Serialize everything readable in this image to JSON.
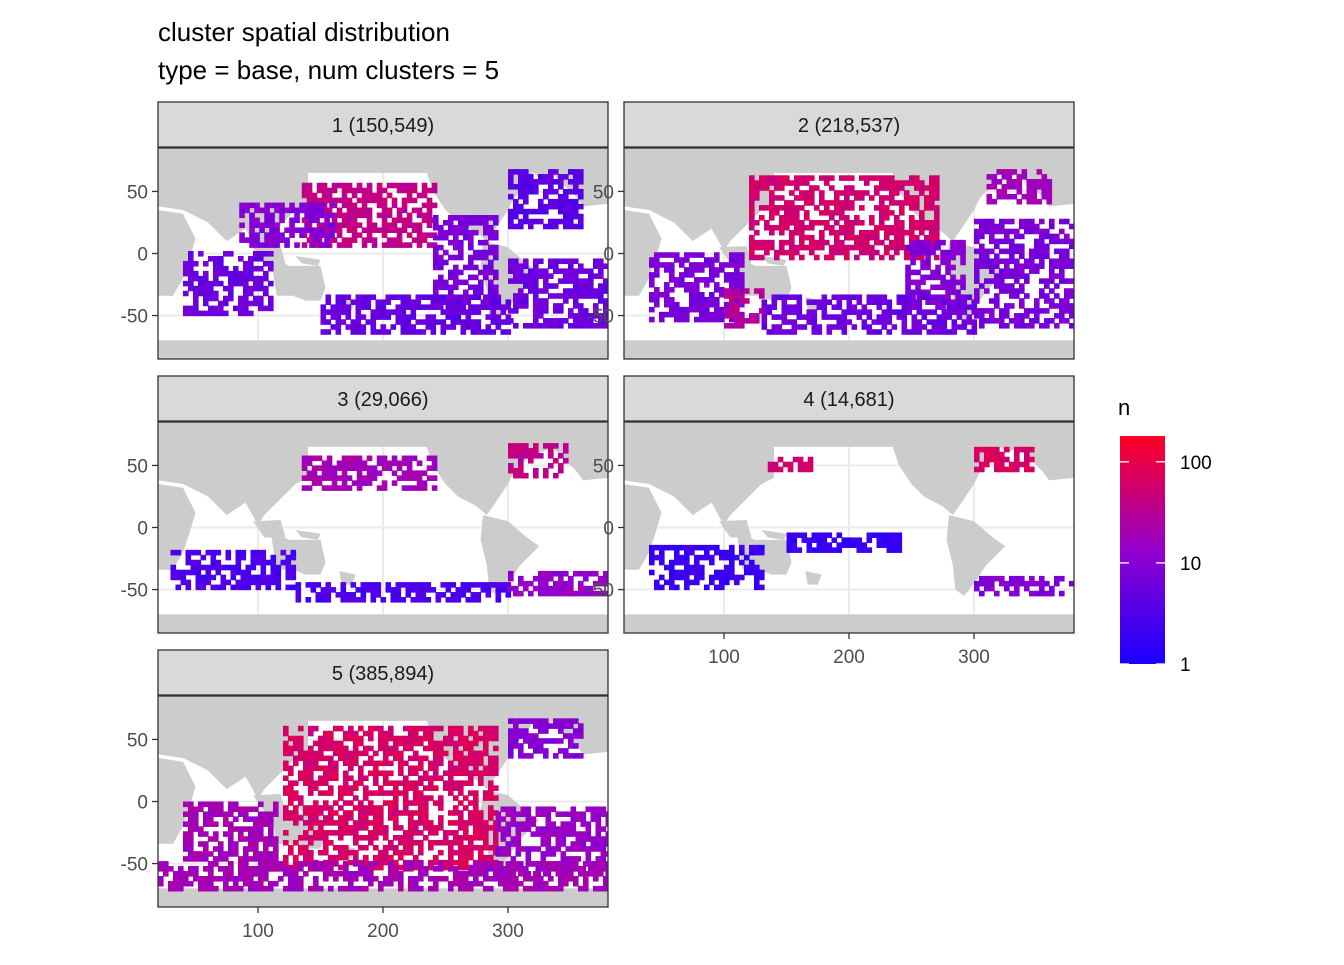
{
  "title_line1": "cluster spatial distribution",
  "title_line2": "type = base, num clusters = 5",
  "colors": {
    "low": "#1a00ff",
    "mid": "#9400cc",
    "high": "#ff0022",
    "land": "#cccccc",
    "strip": "#d9d9d9",
    "grid": "#ebebeb",
    "border": "#333333"
  },
  "chart_data": {
    "type": "heatmap",
    "facet_by": "cluster",
    "facets": [
      {
        "label": "1 (150,549)",
        "cluster": 1,
        "count": 150549
      },
      {
        "label": "2 (218,537)",
        "cluster": 2,
        "count": 218537
      },
      {
        "label": "3 (29,066)",
        "cluster": 3,
        "count": 29066
      },
      {
        "label": "4 (14,681)",
        "cluster": 4,
        "count": 14681
      },
      {
        "label": "5 (385,894)",
        "cluster": 5,
        "count": 385894
      }
    ],
    "x_ticks": [
      "100",
      "200",
      "300"
    ],
    "y_ticks": [
      "50",
      "0",
      "-50"
    ],
    "x_tick_values": [
      100,
      200,
      300
    ],
    "y_tick_values": [
      50,
      0,
      -50
    ],
    "xlim": [
      20,
      380
    ],
    "ylim": [
      -85,
      85
    ],
    "grid": true,
    "legend": {
      "title": "n",
      "scale": "log10",
      "ticks": [
        "100",
        "10",
        "1"
      ],
      "tick_values": [
        100,
        10,
        1
      ],
      "range": [
        1,
        180
      ],
      "placement": "right"
    }
  }
}
